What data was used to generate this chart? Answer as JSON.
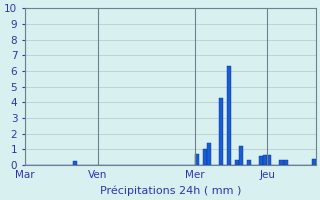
{
  "title": "",
  "xlabel": "Précipitations 24h ( mm )",
  "ylabel": "",
  "ylim": [
    0,
    10
  ],
  "yticks": [
    0,
    1,
    2,
    3,
    4,
    5,
    6,
    7,
    8,
    9,
    10
  ],
  "background_color": "#d8f0f0",
  "bar_color": "#1a5cd4",
  "bar_edge_color": "#003399",
  "grid_color": "#b0c8c8",
  "tick_color": "#3333aa",
  "label_color": "#3333aa",
  "n_bars": 72,
  "day_labels": [
    "Mar",
    "Ven",
    "Mer",
    "Jeu"
  ],
  "day_positions": [
    0,
    18,
    42,
    60
  ],
  "bar_values": [
    0,
    0,
    0,
    0,
    0,
    0,
    0,
    0,
    0,
    0,
    0,
    0,
    0.25,
    0,
    0,
    0,
    0,
    0,
    0,
    0,
    0,
    0,
    0,
    0,
    0,
    0,
    0,
    0,
    0,
    0,
    0,
    0,
    0,
    0,
    0,
    0,
    0,
    0,
    0,
    0,
    0,
    0,
    0.7,
    0,
    1.0,
    1.4,
    0,
    0,
    4.3,
    0,
    6.3,
    0,
    0.3,
    1.2,
    0,
    0.3,
    0,
    0,
    0.55,
    0.65,
    0.65,
    0,
    0,
    0.3,
    0.3,
    0,
    0,
    0,
    0,
    0,
    0,
    0.35
  ]
}
